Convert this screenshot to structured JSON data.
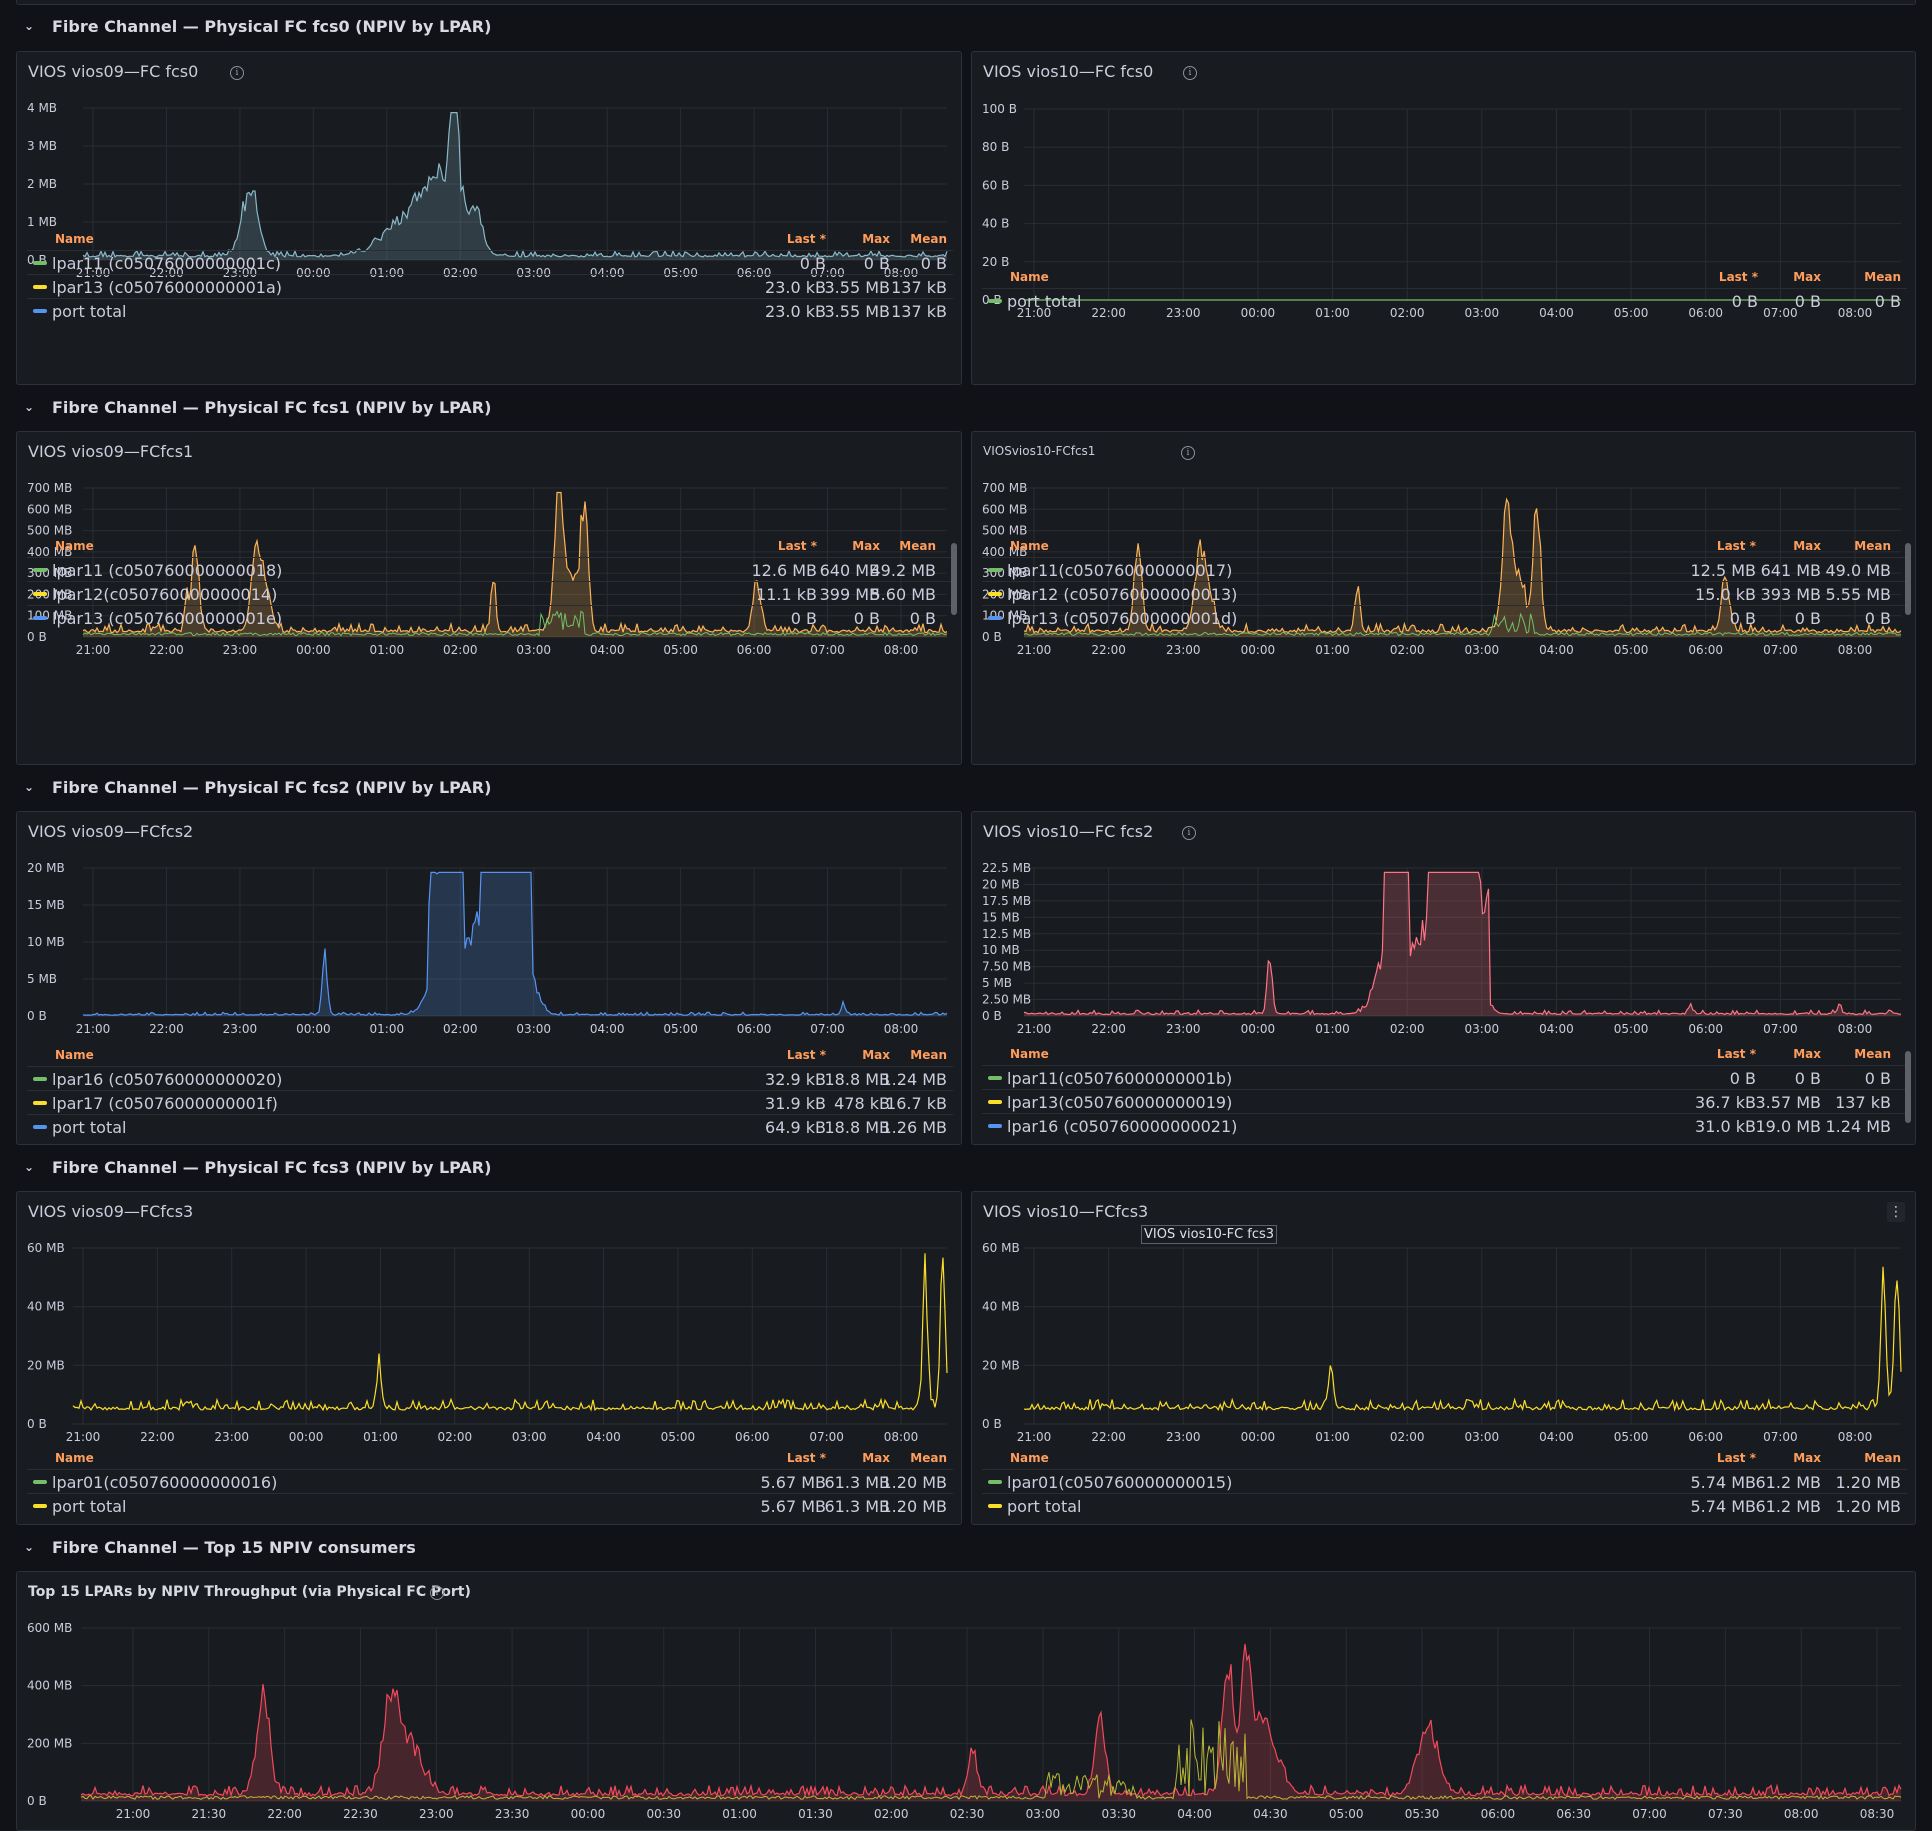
{
  "rows": [
    {
      "title": "Fibre Channel — Physical FC fcs0 (NPIV by LPAR)"
    },
    {
      "title": "Fibre Channel — Physical FC fcs1 (NPIV by LPAR)"
    },
    {
      "title": "Fibre Channel — Physical FC fcs2 (NPIV by LPAR)"
    },
    {
      "title": "Fibre Channel — Physical FC fcs3 (NPIV by LPAR)"
    },
    {
      "title": "Fibre Channel — Top 15 NPIV consumers"
    }
  ],
  "legend_headers": {
    "name": "Name",
    "last": "Last *",
    "max": "Max",
    "mean": "Mean"
  },
  "colors": {
    "green": "#73bf69",
    "yellow": "#fade2a",
    "blue": "#5794f2",
    "orange": "#ffb357",
    "red": "#f2495c",
    "pink": "#ff7383",
    "grey": "#8ab8c8",
    "olive": "#b8b838"
  },
  "panels": [
    {
      "title": "VIOS vios09—FC fcs0",
      "chart_data": {
        "type": "line",
        "y_ticks": [
          "4 MB",
          "3 MB",
          "2 MB",
          "1 MB",
          "0 B"
        ],
        "x_ticks": [
          "21:00",
          "22:00",
          "23:00",
          "00:00",
          "01:00",
          "02:00",
          "03:00",
          "04:00",
          "05:00",
          "06:00",
          "07:00",
          "08:00"
        ],
        "ylim": [
          0,
          4
        ],
        "y_unit": "MB",
        "series_color": "#8ab8c8"
      },
      "legend": [
        {
          "name": "lpar11 (c05076000000001c)",
          "color": "#73bf69",
          "last": "0 B",
          "max": "0 B",
          "mean": "0 B"
        },
        {
          "name": "lpar13 (c05076000000001a)",
          "color": "#fade2a",
          "last": "23.0 kB",
          "max": "3.55 MB",
          "mean": "137 kB",
          "big": true
        },
        {
          "name": "port total",
          "color": "#5794f2",
          "last": "23.0 kB",
          "max": "3.55 MB",
          "mean": "137 kB"
        }
      ]
    },
    {
      "title": "VIOS vios10—FC fcs0",
      "chart_data": {
        "type": "line",
        "y_ticks": [
          "100 B",
          "80 B",
          "60 B",
          "40 B",
          "20 B",
          "0 B"
        ],
        "x_ticks": [
          "21:00",
          "22:00",
          "23:00",
          "00:00",
          "01:00",
          "02:00",
          "03:00",
          "04:00",
          "05:00",
          "06:00",
          "07:00",
          "08:00"
        ],
        "ylim": [
          0,
          100
        ],
        "y_unit": "B",
        "series_color": "#73bf69"
      },
      "legend": [
        {
          "name": "port total",
          "color": "#73bf69",
          "last": "0 B",
          "max": "0 B",
          "mean": "0 B"
        }
      ]
    },
    {
      "title": "VIOS vios09—FCfcs1",
      "chart_data": {
        "type": "line",
        "y_ticks": [
          "700 MB",
          "600 MB",
          "500 MB",
          "400 MB",
          "300 MB",
          "200 MB",
          "100 MB",
          "0 B"
        ],
        "x_ticks": [
          "21:00",
          "22:00",
          "23:00",
          "00:00",
          "01:00",
          "02:00",
          "03:00",
          "04:00",
          "05:00",
          "06:00",
          "07:00",
          "08:00"
        ],
        "ylim": [
          0,
          700
        ],
        "y_unit": "MB",
        "series_color": "#ffb357"
      },
      "legend": [
        {
          "name": "lpar11 (c050760000000018)",
          "color": "#73bf69",
          "last": "12.6 MB",
          "max": "640 MB",
          "mean": "49.2 MB"
        },
        {
          "name": "lpar12(c050760000000014)",
          "color": "#fade2a",
          "last": "11.1 kB",
          "max": "399 MB",
          "mean": "5.60 MB"
        },
        {
          "name": "lpar13 (c05076000000001e)",
          "color": "#5794f2",
          "last": "0 B",
          "max": "0 B",
          "mean": "0 B"
        }
      ]
    },
    {
      "title": "VIOSvios10-FCfcs1",
      "chart_data": {
        "type": "line",
        "y_ticks": [
          "700 MB",
          "600 MB",
          "500 MB",
          "400 MB",
          "300 MB",
          "200 MB",
          "100 MB",
          "0 B"
        ],
        "x_ticks": [
          "21:00",
          "22:00",
          "23:00",
          "00:00",
          "01:00",
          "02:00",
          "03:00",
          "04:00",
          "05:00",
          "06:00",
          "07:00",
          "08:00"
        ],
        "ylim": [
          0,
          700
        ],
        "y_unit": "MB",
        "series_color": "#ffb357"
      },
      "legend": [
        {
          "name": "lpar11(c050760000000017)",
          "color": "#73bf69",
          "last": "12.5 MB",
          "max": "641 MB",
          "mean": "49.0 MB"
        },
        {
          "name": "lpar12 (c050760000000013)",
          "color": "#fade2a",
          "last": "15.0 kB",
          "max": "393 MB",
          "mean": "5.55 MB"
        },
        {
          "name": "lpar13 (c05076000000001d)",
          "color": "#5794f2",
          "last": "0 B",
          "max": "0 B",
          "mean": "0 B"
        }
      ]
    },
    {
      "title": "VIOS vios09—FCfcs2",
      "chart_data": {
        "type": "line",
        "y_ticks": [
          "20 MB",
          "15 MB",
          "10 MB",
          "5 MB",
          "0 B"
        ],
        "x_ticks": [
          "21:00",
          "22:00",
          "23:00",
          "00:00",
          "01:00",
          "02:00",
          "03:00",
          "04:00",
          "05:00",
          "06:00",
          "07:00",
          "08:00"
        ],
        "ylim": [
          0,
          20
        ],
        "y_unit": "MB",
        "series_color": "#5794f2"
      },
      "legend": [
        {
          "name": "lpar16 (c050760000000020)",
          "color": "#73bf69",
          "last": "32.9 kB",
          "max": "18.8 MB",
          "mean": "1.24 MB",
          "big": true
        },
        {
          "name": "lpar17 (c05076000000001f)",
          "color": "#fade2a",
          "last": "31.9 kB",
          "max": "478 kB",
          "mean": "16.7 kB",
          "big": true
        },
        {
          "name": "port total",
          "color": "#5794f2",
          "last": "64.9 kB",
          "max": "18.8 MB",
          "mean": "1.26 MB"
        }
      ]
    },
    {
      "title": "VIOS vios10—FC fcs2",
      "chart_data": {
        "type": "line",
        "y_ticks": [
          "22.5 MB",
          "20 MB",
          "17.5 MB",
          "15 MB",
          "12.5 MB",
          "10 MB",
          "7.50 MB",
          "5 MB",
          "2.50 MB",
          "0 B"
        ],
        "x_ticks": [
          "21:00",
          "22:00",
          "23:00",
          "00:00",
          "01:00",
          "02:00",
          "03:00",
          "04:00",
          "05:00",
          "06:00",
          "07:00",
          "08:00"
        ],
        "ylim": [
          0,
          22.5
        ],
        "y_unit": "MB",
        "series_color": "#ff7383"
      },
      "legend": [
        {
          "name": "lpar11(c05076000000001b)",
          "color": "#73bf69",
          "last": "0 B",
          "max": "0 B",
          "mean": "0 B"
        },
        {
          "name": "lpar13(c050760000000019)",
          "color": "#fade2a",
          "last": "36.7 kB",
          "max": "3.57 MB",
          "mean": "137 kB"
        },
        {
          "name": "lpar16 (c050760000000021)",
          "color": "#5794f2",
          "last": "31.0 kB",
          "max": "19.0 MB",
          "mean": "1.24 MB"
        }
      ]
    },
    {
      "title": "VIOS vios09—FCfcs3",
      "chart_data": {
        "type": "line",
        "y_ticks": [
          "60 MB",
          "40 MB",
          "20 MB",
          "0 B"
        ],
        "x_ticks": [
          "21:00",
          "22:00",
          "23:00",
          "00:00",
          "01:00",
          "02:00",
          "03:00",
          "04:00",
          "05:00",
          "06:00",
          "07:00",
          "08:00"
        ],
        "ylim": [
          0,
          70
        ],
        "y_unit": "MB",
        "series_color": "#fade2a"
      },
      "legend": [
        {
          "name": "lpar01(c050760000000016)",
          "color": "#73bf69",
          "last": "5.67 MB",
          "max": "61.3 MB",
          "mean": "1.20 MB",
          "big": true
        },
        {
          "name": "port total",
          "color": "#fade2a",
          "last": "5.67 MB",
          "max": "61.3 MB",
          "mean": "1.20 MB"
        }
      ]
    },
    {
      "title": "VIOS vios10—FCfcs3",
      "tooltip": "VIOS vios10-FC fcs3",
      "chart_data": {
        "type": "line",
        "y_ticks": [
          "60 MB",
          "40 MB",
          "20 MB",
          "0 B"
        ],
        "x_ticks": [
          "21:00",
          "22:00",
          "23:00",
          "00:00",
          "01:00",
          "02:00",
          "03:00",
          "04:00",
          "05:00",
          "06:00",
          "07:00",
          "08:00"
        ],
        "ylim": [
          0,
          70
        ],
        "y_unit": "MB",
        "series_color": "#fade2a"
      },
      "legend": [
        {
          "name": "lpar01(c050760000000015)",
          "color": "#73bf69",
          "last": "5.74 MB",
          "max": "61.2 MB",
          "mean": "1.20 MB"
        },
        {
          "name": "port total",
          "color": "#fade2a",
          "last": "5.74 MB",
          "max": "61.2 MB",
          "mean": "1.20 MB"
        }
      ]
    },
    {
      "title": "Top 15 LPARs by NPIV Throughput (via Physical FC Port)",
      "chart_data": {
        "type": "line",
        "y_ticks": [
          "600 MB",
          "400 MB",
          "200 MB",
          "0 B"
        ],
        "x_ticks": [
          "21:00",
          "21:30",
          "22:00",
          "22:30",
          "23:00",
          "23:30",
          "00:00",
          "00:30",
          "01:00",
          "01:30",
          "02:00",
          "02:30",
          "03:00",
          "03:30",
          "04:00",
          "04:30",
          "05:00",
          "05:30",
          "06:00",
          "06:30",
          "07:00",
          "07:30",
          "08:00",
          "08:30"
        ],
        "ylim": [
          0,
          700
        ],
        "y_unit": "MB",
        "series_color": "#f2495c"
      },
      "legend": []
    }
  ]
}
